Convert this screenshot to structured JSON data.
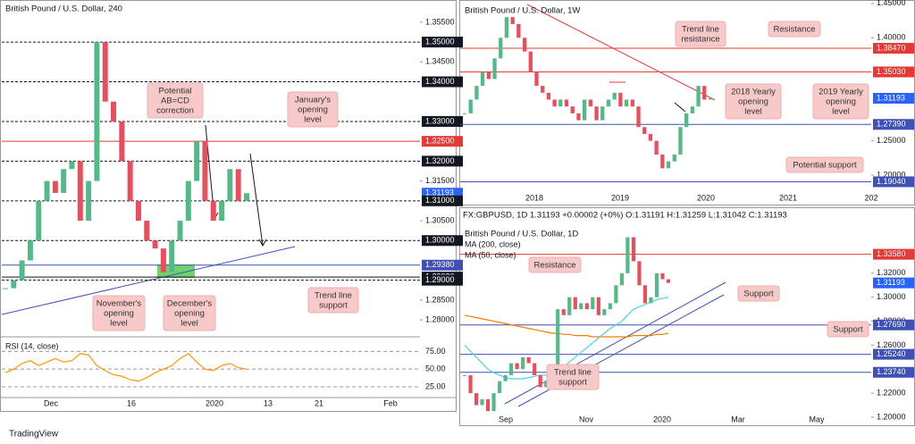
{
  "chart_data": [
    {
      "type": "candlestick",
      "title": "British Pound / U.S. Dollar, 240",
      "up_color": "#53b987",
      "down_color": "#eb4d5c",
      "values": [
        1.288,
        1.29,
        1.295,
        1.3,
        1.31,
        1.315,
        1.312,
        1.318,
        1.32,
        1.305,
        1.315,
        1.35,
        1.335,
        1.33,
        1.32,
        1.31,
        1.305,
        1.3,
        1.298,
        1.292,
        1.3,
        1.305,
        1.315,
        1.325,
        1.31,
        1.305,
        1.31,
        1.318,
        1.31,
        1.31193
      ],
      "ylim": [
        1.2762,
        1.3606
      ],
      "yticks": [
        {
          "value": 1.355,
          "label": "1.35500"
        },
        {
          "value": 1.345,
          "label": "1.34500"
        },
        {
          "value": 1.315,
          "label": "1.31500"
        },
        {
          "value": 1.305,
          "label": "1.30500"
        },
        {
          "value": 1.285,
          "label": "1.28500"
        },
        {
          "value": 1.28,
          "label": "1.28000"
        }
      ],
      "levels": [
        {
          "value": 1.35,
          "label": "1.35000",
          "color": "#131722",
          "style": "dashed"
        },
        {
          "value": 1.34,
          "label": "1.34000",
          "color": "#131722",
          "style": "dashed"
        },
        {
          "value": 1.33,
          "label": "1.33000",
          "color": "#131722",
          "style": "dashed"
        },
        {
          "value": 1.325,
          "label": "1.32500",
          "color": "#e53935",
          "style": "solid"
        },
        {
          "value": 1.32,
          "label": "1.32000",
          "color": "#131722",
          "style": "dashed"
        },
        {
          "value": 1.31193,
          "label": "1.31193",
          "color": "#2962ff",
          "style": "none"
        },
        {
          "value": 1.31,
          "label": "1.31000",
          "color": "#131722",
          "style": "dashed"
        },
        {
          "value": 1.3,
          "label": "1.30000",
          "color": "#131722",
          "style": "dashed"
        },
        {
          "value": 1.2938,
          "label": "1.29380",
          "color": "#3f51b5",
          "style": "solid"
        },
        {
          "value": 1.2908,
          "label": "1.29080",
          "color": "#131722",
          "style": "solid"
        },
        {
          "value": 1.29,
          "label": "1.29000",
          "color": "#131722",
          "style": "dashed"
        }
      ],
      "xtick_labels": [
        "Dec",
        "16",
        "2020",
        "13",
        "21",
        "Feb"
      ],
      "annotations": [
        {
          "lines": [
            "Potential",
            "AB=CD",
            "correction"
          ]
        },
        {
          "lines": [
            "January's",
            "opening",
            "level"
          ]
        },
        {
          "lines": [
            "November's",
            "opening",
            "level"
          ]
        },
        {
          "lines": [
            "December's",
            "opening",
            "level"
          ]
        },
        {
          "lines": [
            "Trend line",
            "support"
          ]
        }
      ],
      "indicator": {
        "name": "RSI (14, close)",
        "color": "#ff9800",
        "values": [
          45,
          50,
          58,
          62,
          55,
          60,
          65,
          60,
          62,
          72,
          70,
          55,
          48,
          42,
          40,
          35,
          33,
          38,
          45,
          50,
          55,
          65,
          72,
          60,
          50,
          48,
          55,
          58,
          52,
          50
        ],
        "ylim": [
          11,
          92
        ],
        "yticks": [
          {
            "value": 75,
            "label": "75.00"
          },
          {
            "value": 50,
            "label": "50.00"
          },
          {
            "value": 25,
            "label": "25.00"
          }
        ]
      }
    },
    {
      "type": "candlestick",
      "title": "British Pound / U.S. Dollar, 1W",
      "up_color": "#53b987",
      "down_color": "#eb4d5c",
      "values": [
        1.29,
        1.31,
        1.33,
        1.35,
        1.34,
        1.37,
        1.4,
        1.43,
        1.42,
        1.4,
        1.38,
        1.35,
        1.33,
        1.32,
        1.31,
        1.3,
        1.31,
        1.3,
        1.29,
        1.28,
        1.31,
        1.3,
        1.28,
        1.3,
        1.31,
        1.32,
        1.3,
        1.31,
        1.3,
        1.27,
        1.26,
        1.25,
        1.23,
        1.21,
        1.22,
        1.23,
        1.27,
        1.29,
        1.3,
        1.33,
        1.31,
        1.31193
      ],
      "ylim": [
        1.178,
        1.455
      ],
      "yticks": [
        {
          "value": 1.45,
          "label": "1.45000"
        },
        {
          "value": 1.4,
          "label": "1.40000"
        },
        {
          "value": 1.25,
          "label": "1.25000"
        },
        {
          "value": 1.2,
          "label": "1.20000"
        }
      ],
      "levels": [
        {
          "value": 1.3847,
          "label": "1.38470",
          "color": "#e53935",
          "style": "solid"
        },
        {
          "value": 1.3503,
          "label": "1.35030",
          "color": "#e53935",
          "style": "solid"
        },
        {
          "value": 1.31193,
          "label": "1.31193",
          "color": "#2962ff",
          "style": "none"
        },
        {
          "value": 1.2739,
          "label": "1.27390",
          "color": "#3f51b5",
          "style": "solid"
        },
        {
          "value": 1.1904,
          "label": "1.19040",
          "color": "#3f51b5",
          "style": "solid"
        }
      ],
      "xtick_labels": [
        "2018",
        "2019",
        "2020",
        "2021",
        "202"
      ],
      "annotations": [
        {
          "lines": [
            "Trend line",
            "resistance"
          ]
        },
        {
          "lines": [
            "Resistance"
          ]
        },
        {
          "lines": [
            "2018 Yearly",
            "opening",
            "level"
          ]
        },
        {
          "lines": [
            "2019 Yearly",
            "opening",
            "level"
          ]
        },
        {
          "lines": [
            "Potential support"
          ]
        }
      ]
    },
    {
      "type": "candlestick",
      "title": "British Pound / U.S. Dollar, 1D",
      "header": "FX:GBPUSD, 1D 1.31193 +0.00002 (+0%) O:1.31191 H:1.31259 L:1.31042 C:1.31193",
      "up_color": "#53b987",
      "down_color": "#eb4d5c",
      "values": [
        1.235,
        1.22,
        1.21,
        1.215,
        1.205,
        1.22,
        1.23,
        1.235,
        1.245,
        1.24,
        1.25,
        1.245,
        1.235,
        1.225,
        1.23,
        1.24,
        1.29,
        1.285,
        1.3,
        1.29,
        1.295,
        1.29,
        1.3,
        1.285,
        1.29,
        1.295,
        1.31,
        1.32,
        1.35,
        1.33,
        1.31,
        1.295,
        1.3,
        1.32,
        1.315,
        1.31193
      ],
      "series": [
        {
          "name": "MA (200, close)",
          "color": "#f57c00",
          "values": [
            1.285,
            1.284,
            1.283,
            1.282,
            1.281,
            1.28,
            1.279,
            1.278,
            1.277,
            1.276,
            1.275,
            1.274,
            1.273,
            1.272,
            1.271,
            1.27,
            1.27,
            1.269,
            1.269,
            1.268,
            1.268,
            1.268,
            1.267,
            1.267,
            1.267,
            1.267,
            1.267,
            1.267,
            1.267,
            1.268,
            1.268,
            1.268,
            1.268,
            1.269,
            1.269,
            1.27
          ]
        },
        {
          "name": "MA (50, close)",
          "color": "#4dd0e1",
          "values": [
            1.26,
            1.255,
            1.25,
            1.245,
            1.24,
            1.237,
            1.235,
            1.233,
            1.232,
            1.232,
            1.232,
            1.233,
            1.234,
            1.235,
            1.235,
            1.236,
            1.238,
            1.242,
            1.246,
            1.25,
            1.254,
            1.258,
            1.262,
            1.266,
            1.27,
            1.274,
            1.277,
            1.28,
            1.285,
            1.29,
            1.292,
            1.294,
            1.296,
            1.298,
            1.299,
            1.3
          ]
        }
      ],
      "ylim": [
        1.194,
        1.3616
      ],
      "yticks": [
        {
          "value": 1.32,
          "label": "1.32000"
        },
        {
          "value": 1.3,
          "label": "1.30000"
        },
        {
          "value": 1.28,
          "label": "1.28000"
        },
        {
          "value": 1.26,
          "label": "1.26000"
        },
        {
          "value": 1.22,
          "label": "1.22000"
        },
        {
          "value": 1.2,
          "label": "1.20000"
        }
      ],
      "levels": [
        {
          "value": 1.3358,
          "label": "1.33580",
          "color": "#e53935",
          "style": "solid"
        },
        {
          "value": 1.31193,
          "label": "1.31193",
          "color": "#2962ff",
          "style": "none"
        },
        {
          "value": 1.2769,
          "label": "1.27690",
          "color": "#3f51b5",
          "style": "solid"
        },
        {
          "value": 1.2524,
          "label": "1.25240",
          "color": "#3f51b5",
          "style": "solid"
        },
        {
          "value": 1.2374,
          "label": "1.23740",
          "color": "#3f51b5",
          "style": "solid"
        }
      ],
      "xtick_labels": [
        "Sep",
        "Nov",
        "2020",
        "Mar",
        "May"
      ],
      "annotations": [
        {
          "lines": [
            "Resistance"
          ]
        },
        {
          "lines": [
            "Support"
          ]
        },
        {
          "lines": [
            "Support"
          ]
        },
        {
          "lines": [
            "Trend line",
            "support"
          ]
        }
      ]
    }
  ],
  "footer": {
    "brand": "TradingView"
  }
}
